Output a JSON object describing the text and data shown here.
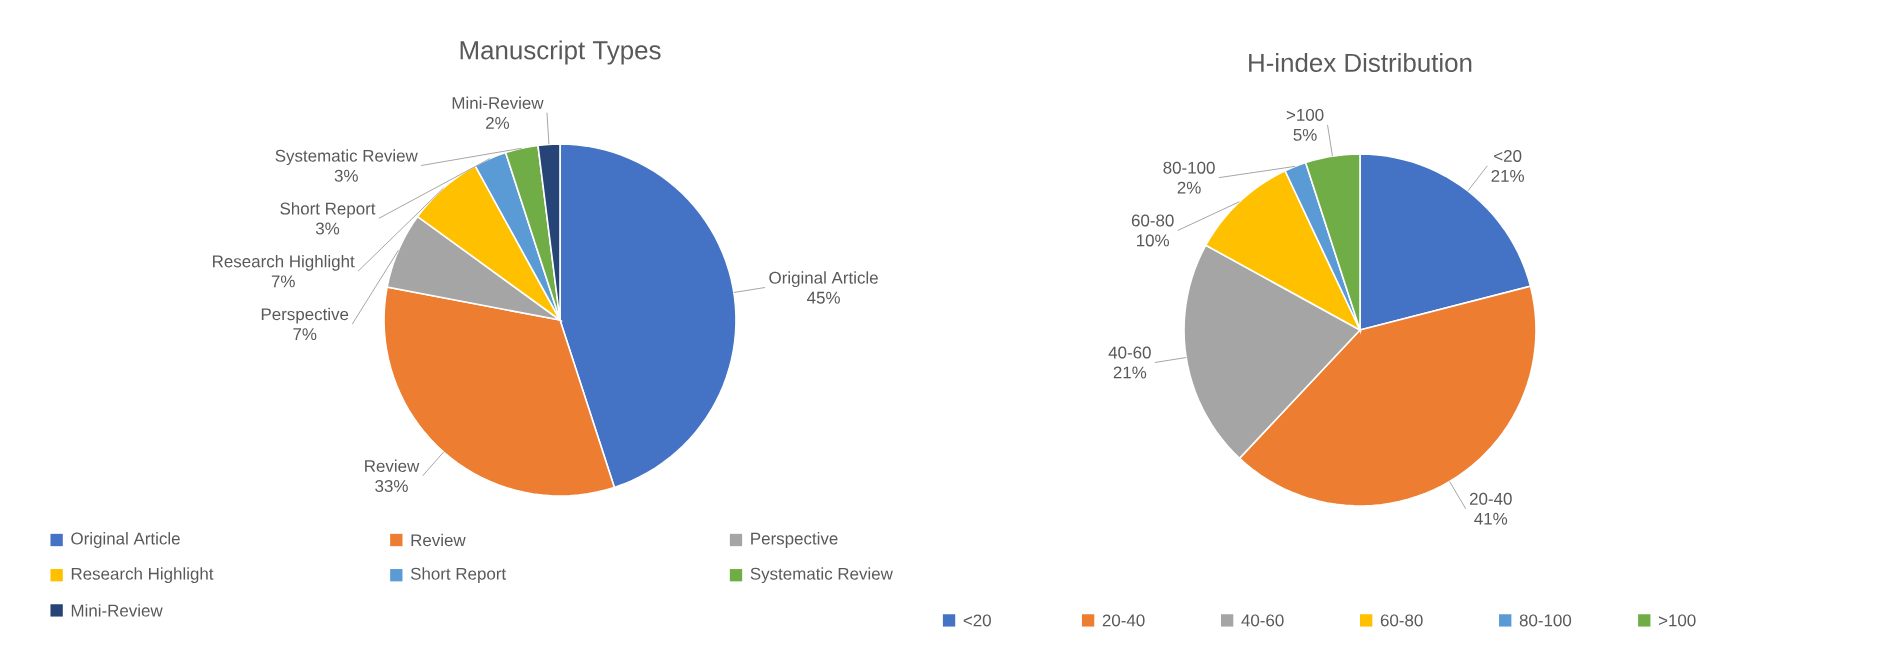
{
  "chart_data": [
    {
      "type": "pie",
      "title": "Manuscript Types",
      "categories": [
        "Original Article",
        "Review",
        "Perspective",
        "Research Highlight",
        "Short Report",
        "Systematic Review",
        "Mini-Review"
      ],
      "values": [
        45,
        33,
        7,
        7,
        3,
        3,
        2
      ],
      "value_labels": [
        "45%",
        "33%",
        "7%",
        "7%",
        "3%",
        "3%",
        "2%"
      ],
      "colors": [
        "#4472c4",
        "#ed7d31",
        "#a5a5a5",
        "#ffc000",
        "#5b9bd5",
        "#70ad47",
        "#264478"
      ],
      "legend": "bottom"
    },
    {
      "type": "pie",
      "title": "H-index Distribution",
      "categories": [
        "<20",
        "20-40",
        "40-60",
        "60-80",
        "80-100",
        ">100"
      ],
      "values": [
        21,
        41,
        21,
        10,
        2,
        5
      ],
      "value_labels": [
        "21%",
        "41%",
        "21%",
        "10%",
        "2%",
        "5%"
      ],
      "colors": [
        "#4472c4",
        "#ed7d31",
        "#a5a5a5",
        "#ffc000",
        "#5b9bd5",
        "#70ad47"
      ],
      "legend": "bottom"
    }
  ]
}
